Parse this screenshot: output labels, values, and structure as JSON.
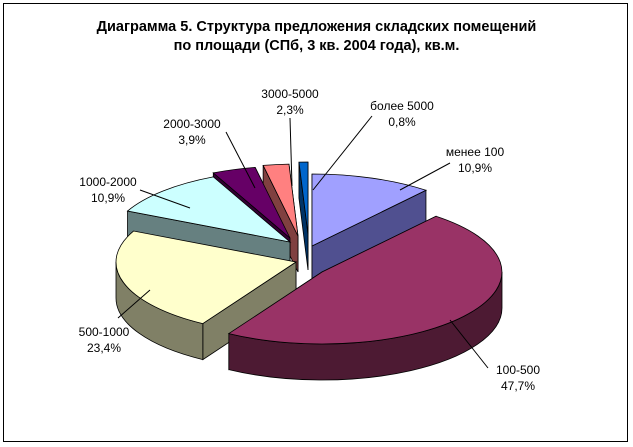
{
  "chart_data": {
    "type": "pie",
    "title_line1": "Диаграмма 5. Структура предложения складских помещений",
    "title_line2": "по площади (СПб, 3 кв. 2004 года), кв.м.",
    "slices": [
      {
        "category": "менее 100",
        "value": 10.9,
        "value_label": "10,9%",
        "top": "#a0a0ff",
        "side": "#505090"
      },
      {
        "category": "100-500",
        "value": 47.7,
        "value_label": "47,7%",
        "top": "#993366",
        "side": "#4d1a33"
      },
      {
        "category": "500-1000",
        "value": 23.4,
        "value_label": "23,4%",
        "top": "#ffffcc",
        "side": "#808066"
      },
      {
        "category": "1000-2000",
        "value": 10.9,
        "value_label": "10,9%",
        "top": "#ccffff",
        "side": "#668080"
      },
      {
        "category": "2000-3000",
        "value": 3.9,
        "value_label": "3,9%",
        "top": "#660066",
        "side": "#330033"
      },
      {
        "category": "3000-5000",
        "value": 2.3,
        "value_label": "2,3%",
        "top": "#ff8080",
        "side": "#804040"
      },
      {
        "category": "более 5000",
        "value": 0.8,
        "value_label": "0,8%",
        "top": "#0066cc",
        "side": "#003366"
      }
    ],
    "legend": "none"
  }
}
